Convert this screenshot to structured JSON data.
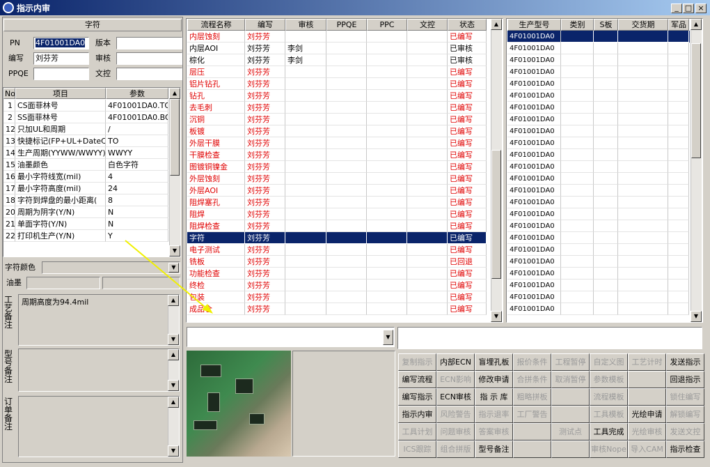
{
  "window": {
    "title": "指示内审"
  },
  "char_group": {
    "title": "字符",
    "fields": [
      {
        "label": "PN",
        "value": "4F01001DA0"
      },
      {
        "label": "版本",
        "value": null
      },
      {
        "label": "编写",
        "value": "刘芬芳"
      },
      {
        "label": "审核",
        "value": null
      },
      {
        "label": "PPQE",
        "value": null
      },
      {
        "label": "文控",
        "value": null
      }
    ]
  },
  "param_table": {
    "columns": [
      "No",
      "项目",
      "参数"
    ],
    "rows": [
      [
        "1",
        "CS面菲林号",
        "4F01001DA0.TO"
      ],
      [
        "2",
        "SS面菲林号",
        "4F01001DA0.BO"
      ],
      [
        "12",
        "只加UL和周期",
        "/"
      ],
      [
        "13",
        "快捷标记(FP+UL+DateCo",
        "TO"
      ],
      [
        "14",
        "生产周期(YYWW/WWYY)",
        "WWYY"
      ],
      [
        "15",
        "油墨颜色",
        "白色字符"
      ],
      [
        "16",
        "最小字符线宽(mil)",
        "4"
      ],
      [
        "17",
        "最小字符高度(mil)",
        "24"
      ],
      [
        "18",
        "字符到焊盘的最小距离(",
        "8"
      ],
      [
        "20",
        "周期为阴字(Y/N)",
        "N"
      ],
      [
        "21",
        "单面字符(Y/N)",
        "N"
      ],
      [
        "22",
        "打印机生产(Y/N)",
        "Y"
      ]
    ]
  },
  "char_color_label": "字符颜色",
  "ink_label": "油墨",
  "notes": [
    {
      "label": "工艺备注",
      "text": "周期高度为94.4mil"
    },
    {
      "label": "型号备注",
      "text": null
    },
    {
      "label": "订单备注",
      "text": null
    }
  ],
  "flow_table": {
    "columns": [
      "流程名称",
      "编写",
      "审核",
      "PPQE",
      "PPC",
      "文控",
      "状态"
    ],
    "selected_row": 17,
    "rows": [
      {
        "color": "#e00000",
        "cells": [
          "内层蚀刻",
          "刘芬芳",
          null,
          null,
          null,
          null,
          "已编写"
        ]
      },
      {
        "color": "#000000",
        "cells": [
          "内层AOI",
          "刘芬芳",
          "李剑",
          null,
          null,
          null,
          "已审核"
        ]
      },
      {
        "color": "#000000",
        "cells": [
          "棕化",
          "刘芬芳",
          "李剑",
          null,
          null,
          null,
          "已审核"
        ]
      },
      {
        "color": "#e00000",
        "cells": [
          "层压",
          "刘芬芳",
          null,
          null,
          null,
          null,
          "已编写"
        ]
      },
      {
        "color": "#e00000",
        "cells": [
          "铝片钻孔",
          "刘芬芳",
          null,
          null,
          null,
          null,
          "已编写"
        ]
      },
      {
        "color": "#e00000",
        "cells": [
          "钻孔",
          "刘芬芳",
          null,
          null,
          null,
          null,
          "已编写"
        ]
      },
      {
        "color": "#e00000",
        "cells": [
          "去毛刺",
          "刘芬芳",
          null,
          null,
          null,
          null,
          "已编写"
        ]
      },
      {
        "color": "#e00000",
        "cells": [
          "沉铜",
          "刘芬芳",
          null,
          null,
          null,
          null,
          "已编写"
        ]
      },
      {
        "color": "#e00000",
        "cells": [
          "板镀",
          "刘芬芳",
          null,
          null,
          null,
          null,
          "已编写"
        ]
      },
      {
        "color": "#e00000",
        "cells": [
          "外层干膜",
          "刘芬芳",
          null,
          null,
          null,
          null,
          "已编写"
        ]
      },
      {
        "color": "#e00000",
        "cells": [
          "干膜检查",
          "刘芬芳",
          null,
          null,
          null,
          null,
          "已编写"
        ]
      },
      {
        "color": "#e00000",
        "cells": [
          "图镀铜镍金",
          "刘芬芳",
          null,
          null,
          null,
          null,
          "已编写"
        ]
      },
      {
        "color": "#e00000",
        "cells": [
          "外层蚀刻",
          "刘芬芳",
          null,
          null,
          null,
          null,
          "已编写"
        ]
      },
      {
        "color": "#e00000",
        "cells": [
          "外层AOI",
          "刘芬芳",
          null,
          null,
          null,
          null,
          "已编写"
        ]
      },
      {
        "color": "#e00000",
        "cells": [
          "阻焊塞孔",
          "刘芬芳",
          null,
          null,
          null,
          null,
          "已编写"
        ]
      },
      {
        "color": "#e00000",
        "cells": [
          "阻焊",
          "刘芬芳",
          null,
          null,
          null,
          null,
          "已编写"
        ]
      },
      {
        "color": "#e00000",
        "cells": [
          "阻焊检查",
          "刘芬芳",
          null,
          null,
          null,
          null,
          "已编写"
        ]
      },
      {
        "color": "#e00000",
        "cells": [
          "字符",
          "刘芬芳",
          null,
          null,
          null,
          null,
          "已编写"
        ]
      },
      {
        "color": "#e00000",
        "cells": [
          "电子测试",
          "刘芬芳",
          null,
          null,
          null,
          null,
          "已编写"
        ]
      },
      {
        "color": "#e00000",
        "cells": [
          "铣板",
          "刘芬芳",
          null,
          null,
          null,
          null,
          "已回退"
        ]
      },
      {
        "color": "#e00000",
        "cells": [
          "功能检查",
          "刘芬芳",
          null,
          null,
          null,
          null,
          "已编写"
        ]
      },
      {
        "color": "#e00000",
        "cells": [
          "终检",
          "刘芬芳",
          null,
          null,
          null,
          null,
          "已编写"
        ]
      },
      {
        "color": "#e00000",
        "cells": [
          "包装",
          "刘芬芳",
          null,
          null,
          null,
          null,
          "已编写"
        ]
      },
      {
        "color": "#e00000",
        "cells": [
          "成品仓",
          "刘芬芳",
          null,
          null,
          null,
          null,
          "已编写"
        ]
      }
    ]
  },
  "model_table": {
    "columns": [
      "生产型号",
      "类别",
      "S板",
      "交货期",
      "军品"
    ],
    "selected_row": 0,
    "rows": [
      "4F01001DA0",
      "4F01001DA0",
      "4F01001DA0",
      "4F01001DA0",
      "4F01001DA0",
      "4F01001DA0",
      "4F01001DA0",
      "4F01001DA0",
      "4F01001DA0",
      "4F01001DA0",
      "4F01001DA0",
      "4F01001DA0",
      "4F01001DA0",
      "4F01001DA0",
      "4F01001DA0",
      "4F01001DA0",
      "4F01001DA0",
      "4F01001DA0",
      "4F01001DA0",
      "4F01001DA0",
      "4F01001DA0",
      "4F01001DA0",
      "4F01001DA0",
      "4F01001DA0"
    ]
  },
  "buttons": [
    [
      {
        "label": "复制指示",
        "enabled": false
      },
      {
        "label": "内部ECN",
        "enabled": true
      },
      {
        "label": "盲埋孔板",
        "enabled": true
      },
      {
        "label": "报价条件",
        "enabled": false
      },
      {
        "label": "工程暂停",
        "enabled": false
      },
      {
        "label": "自定义图",
        "enabled": false
      },
      {
        "label": "工艺计时",
        "enabled": false
      },
      {
        "label": "发送指示",
        "enabled": true
      }
    ],
    [
      {
        "label": "编写流程",
        "enabled": true
      },
      {
        "label": "ECN影响",
        "enabled": false
      },
      {
        "label": "修改申请",
        "enabled": true
      },
      {
        "label": "合拼条件",
        "enabled": false
      },
      {
        "label": "取消暂停",
        "enabled": false
      },
      {
        "label": "参数模板",
        "enabled": false
      },
      {
        "label": null,
        "enabled": false
      },
      {
        "label": "回退指示",
        "enabled": true
      }
    ],
    [
      {
        "label": "编写指示",
        "enabled": true
      },
      {
        "label": "ECN审核",
        "enabled": true
      },
      {
        "label": "指 示 库",
        "enabled": true
      },
      {
        "label": "粗略拼板",
        "enabled": false
      },
      {
        "label": null,
        "enabled": false
      },
      {
        "label": "流程模板",
        "enabled": false
      },
      {
        "label": null,
        "enabled": false
      },
      {
        "label": "锁住编写",
        "enabled": false
      }
    ],
    [
      {
        "label": "指示内审",
        "enabled": true
      },
      {
        "label": "风险警告",
        "enabled": false
      },
      {
        "label": "指示退率",
        "enabled": false
      },
      {
        "label": "工厂警告",
        "enabled": false
      },
      {
        "label": null,
        "enabled": false
      },
      {
        "label": "工具模板",
        "enabled": false
      },
      {
        "label": "光绘申请",
        "enabled": true
      },
      {
        "label": "解锁编写",
        "enabled": false
      }
    ],
    [
      {
        "label": "工具计划",
        "enabled": false
      },
      {
        "label": "问题审核",
        "enabled": false
      },
      {
        "label": "答案审核",
        "enabled": false
      },
      {
        "label": null,
        "enabled": false
      },
      {
        "label": "测试点",
        "enabled": false
      },
      {
        "label": "工具完成",
        "enabled": true
      },
      {
        "label": "光绘审核",
        "enabled": false
      },
      {
        "label": "发送文控",
        "enabled": false
      }
    ],
    [
      {
        "label": "ICS跟踪",
        "enabled": false
      },
      {
        "label": "组合拼版",
        "enabled": false
      },
      {
        "label": "型号备注",
        "enabled": true
      },
      {
        "label": null,
        "enabled": false
      },
      {
        "label": null,
        "enabled": false
      },
      {
        "label": "审核Nope",
        "enabled": false
      },
      {
        "label": "导入CAM",
        "enabled": false
      },
      {
        "label": "指示检查",
        "enabled": true
      }
    ]
  ]
}
